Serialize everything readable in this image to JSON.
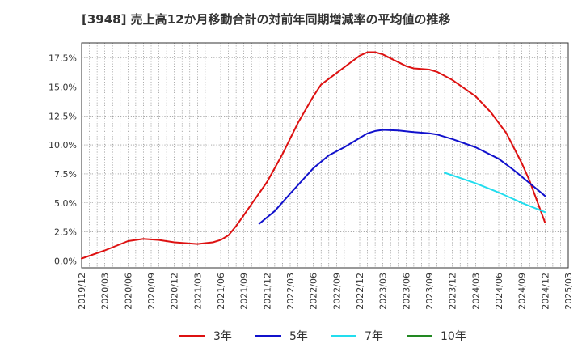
{
  "chart_data": {
    "type": "line",
    "title": "[3948]  売上高12か月移動合計の対前年同期増減率の平均値の推移",
    "xlabel": "",
    "ylabel": "",
    "ylim": [
      -0.6,
      18.8
    ],
    "yticks": [
      {
        "value": 0.0,
        "label": "0.0%"
      },
      {
        "value": 2.5,
        "label": "2.5%"
      },
      {
        "value": 5.0,
        "label": "5.0%"
      },
      {
        "value": 7.5,
        "label": "7.5%"
      },
      {
        "value": 10.0,
        "label": "10.0%"
      },
      {
        "value": 12.5,
        "label": "12.5%"
      },
      {
        "value": 15.0,
        "label": "15.0%"
      },
      {
        "value": 17.5,
        "label": "17.5%"
      }
    ],
    "xticks": [
      "2019/12",
      "2020/03",
      "2020/06",
      "2020/09",
      "2020/12",
      "2021/03",
      "2021/06",
      "2021/09",
      "2021/12",
      "2022/03",
      "2022/06",
      "2022/09",
      "2022/12",
      "2023/03",
      "2023/06",
      "2023/09",
      "2023/12",
      "2024/03",
      "2024/06",
      "2024/09",
      "2024/12",
      "2025/03"
    ],
    "grid": true,
    "legend_position": "bottom",
    "series": [
      {
        "name": "3年",
        "color": "#dd1111",
        "points": [
          [
            "2019/12",
            0.2
          ],
          [
            "2020/03",
            0.9
          ],
          [
            "2020/06",
            1.7
          ],
          [
            "2020/08",
            1.9
          ],
          [
            "2020/10",
            1.8
          ],
          [
            "2020/12",
            1.6
          ],
          [
            "2021/03",
            1.45
          ],
          [
            "2021/05",
            1.6
          ],
          [
            "2021/06",
            1.8
          ],
          [
            "2021/07",
            2.2
          ],
          [
            "2021/08",
            3.0
          ],
          [
            "2021/10",
            4.9
          ],
          [
            "2021/12",
            6.8
          ],
          [
            "2022/02",
            9.2
          ],
          [
            "2022/04",
            11.9
          ],
          [
            "2022/06",
            14.2
          ],
          [
            "2022/07",
            15.2
          ],
          [
            "2022/09",
            16.2
          ],
          [
            "2022/12",
            17.7
          ],
          [
            "2023/01",
            18.0
          ],
          [
            "2023/02",
            18.0
          ],
          [
            "2023/03",
            17.8
          ],
          [
            "2023/06",
            16.8
          ],
          [
            "2023/07",
            16.6
          ],
          [
            "2023/09",
            16.5
          ],
          [
            "2023/10",
            16.3
          ],
          [
            "2023/12",
            15.6
          ],
          [
            "2024/03",
            14.2
          ],
          [
            "2024/05",
            12.8
          ],
          [
            "2024/07",
            11.0
          ],
          [
            "2024/09",
            8.4
          ],
          [
            "2024/10",
            6.9
          ],
          [
            "2024/12",
            3.3
          ]
        ]
      },
      {
        "name": "5年",
        "color": "#1111cc",
        "points": [
          [
            "2021/11",
            3.2
          ],
          [
            "2022/01",
            4.3
          ],
          [
            "2022/03",
            5.8
          ],
          [
            "2022/06",
            8.0
          ],
          [
            "2022/08",
            9.1
          ],
          [
            "2022/10",
            9.8
          ],
          [
            "2022/12",
            10.6
          ],
          [
            "2023/01",
            11.0
          ],
          [
            "2023/02",
            11.2
          ],
          [
            "2023/03",
            11.3
          ],
          [
            "2023/05",
            11.25
          ],
          [
            "2023/07",
            11.1
          ],
          [
            "2023/09",
            11.0
          ],
          [
            "2023/10",
            10.9
          ],
          [
            "2023/12",
            10.5
          ],
          [
            "2024/03",
            9.8
          ],
          [
            "2024/06",
            8.8
          ],
          [
            "2024/08",
            7.8
          ],
          [
            "2024/10",
            6.7
          ],
          [
            "2024/12",
            5.6
          ]
        ]
      },
      {
        "name": "7年",
        "color": "#22ddee",
        "points": [
          [
            "2023/11",
            7.6
          ],
          [
            "2024/03",
            6.7
          ],
          [
            "2024/06",
            5.9
          ],
          [
            "2024/09",
            5.0
          ],
          [
            "2024/12",
            4.2
          ]
        ]
      },
      {
        "name": "10年",
        "color": "#228822",
        "points": []
      }
    ]
  }
}
